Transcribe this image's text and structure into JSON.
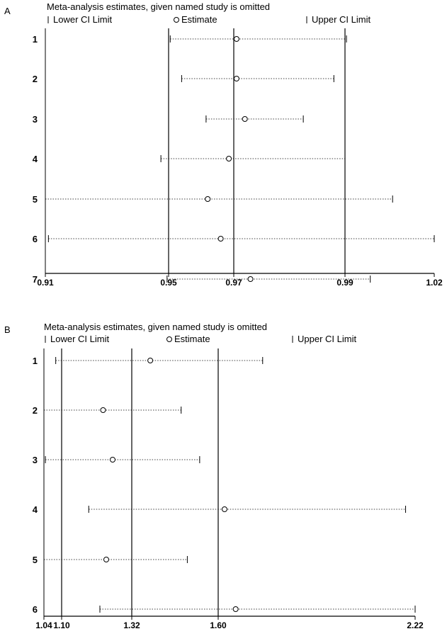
{
  "chart_data": [
    {
      "type": "forest-sensitivity",
      "panel_label": "A",
      "title": "Meta-analysis estimates, given named study is omitted",
      "legend": {
        "lower": "Lower CI Limit",
        "estimate": "Estimate",
        "upper": "Upper CI Limit"
      },
      "x_ticks": [
        0.91,
        0.95,
        0.97,
        0.99,
        1.02
      ],
      "x_tick_labels": [
        "0.91",
        "0.95",
        "0.97",
        "0.99",
        "1.02"
      ],
      "xlim": [
        0.91,
        1.02
      ],
      "reference_lines": [
        0.95,
        0.97,
        0.99
      ],
      "studies": [
        {
          "label": "1",
          "lower": 0.9505,
          "estimate": 0.9705,
          "upper": 0.9905
        },
        {
          "label": "2",
          "lower": 0.954,
          "estimate": 0.9705,
          "upper": 0.988
        },
        {
          "label": "3",
          "lower": 0.9615,
          "estimate": 0.972,
          "upper": 0.9825
        },
        {
          "label": "4",
          "lower": 0.9475,
          "estimate": 0.9685,
          "upper": 0.99
        },
        {
          "label": "5",
          "lower": 0.91,
          "estimate": 0.962,
          "upper": 1.006
        },
        {
          "label": "6",
          "lower": 0.911,
          "estimate": 0.966,
          "upper": 1.02
        },
        {
          "label": "7",
          "lower": 0.9495,
          "estimate": 0.973,
          "upper": 0.9985
        }
      ]
    },
    {
      "type": "forest-sensitivity",
      "panel_label": "B",
      "title": "Meta-analysis estimates, given named study is omitted",
      "legend": {
        "lower": "Lower CI Limit",
        "estimate": "Estimate",
        "upper": "Upper CI Limit"
      },
      "x_ticks": [
        1.04,
        1.1,
        1.32,
        1.6,
        2.22
      ],
      "x_tick_labels": [
        "1.04",
        "1.10",
        "1.32",
        "1.60",
        "2.22"
      ],
      "xlim": [
        1.04,
        2.22
      ],
      "reference_lines": [
        1.1,
        1.32,
        1.6
      ],
      "studies": [
        {
          "label": "1",
          "lower": 1.08,
          "estimate": 1.38,
          "upper": 1.74
        },
        {
          "label": "2",
          "lower": 1.04,
          "estimate": 1.23,
          "upper": 1.48
        },
        {
          "label": "3",
          "lower": 1.045,
          "estimate": 1.26,
          "upper": 1.54
        },
        {
          "label": "4",
          "lower": 1.185,
          "estimate": 1.62,
          "upper": 2.19
        },
        {
          "label": "5",
          "lower": 1.04,
          "estimate": 1.24,
          "upper": 1.5
        },
        {
          "label": "6",
          "lower": 1.22,
          "estimate": 1.655,
          "upper": 2.22
        }
      ]
    }
  ]
}
